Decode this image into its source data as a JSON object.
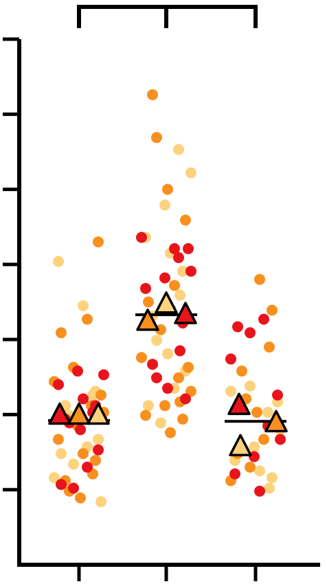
{
  "chart_data": {
    "type": "superplot",
    "categories": [
      null,
      null,
      null
    ],
    "ylim": [
      0,
      7
    ],
    "yticks": [
      0,
      1,
      2,
      3,
      4,
      5,
      6,
      7
    ],
    "series": [
      {
        "color": "#fdd27c",
        "values": [
          [
            4.04,
            3.45,
            2.31,
            2.26,
            2.12,
            1.99,
            1.8,
            1.67,
            1.57,
            1.48,
            1.34,
            1.16,
            0.84
          ],
          [
            5.53,
            5.22,
            4.79,
            4.36,
            4.15,
            3.91,
            3.59,
            3.31,
            2.99,
            2.81,
            2.58,
            2.35,
            2.12,
            1.89
          ],
          [
            2.38,
            2.31,
            2.17,
            2.03,
            1.8,
            1.57,
            1.39,
            1.25,
            1.16,
            1.02
          ]
        ],
        "means": [
          1.99,
          3.47,
          1.57
        ]
      },
      {
        "color": "#f7901e",
        "values": [
          [
            4.3,
            3.27,
            3.09,
            2.63,
            2.44,
            2.26,
            2.12,
            2.03,
            1.85,
            1.67,
            1.48,
            1.39,
            1.21,
            1.12,
            0.98,
            0.89
          ],
          [
            6.26,
            5.69,
            5.0,
            4.59,
            3.72,
            3.5,
            3.13,
            2.76,
            2.63,
            2.49,
            2.31,
            2.12,
            1.99,
            1.76,
            1.94,
            2.17
          ],
          [
            3.8,
            3.39,
            2.9,
            2.58,
            2.21,
            2.03,
            1.89,
            1.67,
            1.48,
            1.3,
            1.12
          ]
        ],
        "means": [
          1.99,
          3.24,
          1.89
        ]
      },
      {
        "color": "#e8141c",
        "values": [
          [
            2.53,
            2.58,
            2.4,
            2.21,
            2.12,
            2.03,
            1.94,
            1.89,
            1.8,
            1.53,
            1.3,
            1.07,
            1.02
          ],
          [
            4.36,
            4.21,
            4.09,
            3.91,
            3.82,
            3.68,
            3.4,
            3.22,
            2.85,
            2.67,
            2.49,
            2.35,
            2.21,
            4.21
          ],
          [
            3.27,
            3.17,
            3.09,
            2.74,
            2.26,
            1.85,
            1.67,
            1.44,
            1.21,
            0.98
          ]
        ],
        "means": [
          1.99,
          3.33,
          2.12
        ]
      }
    ],
    "group_means": [
      1.92,
      3.33,
      1.91
    ]
  }
}
